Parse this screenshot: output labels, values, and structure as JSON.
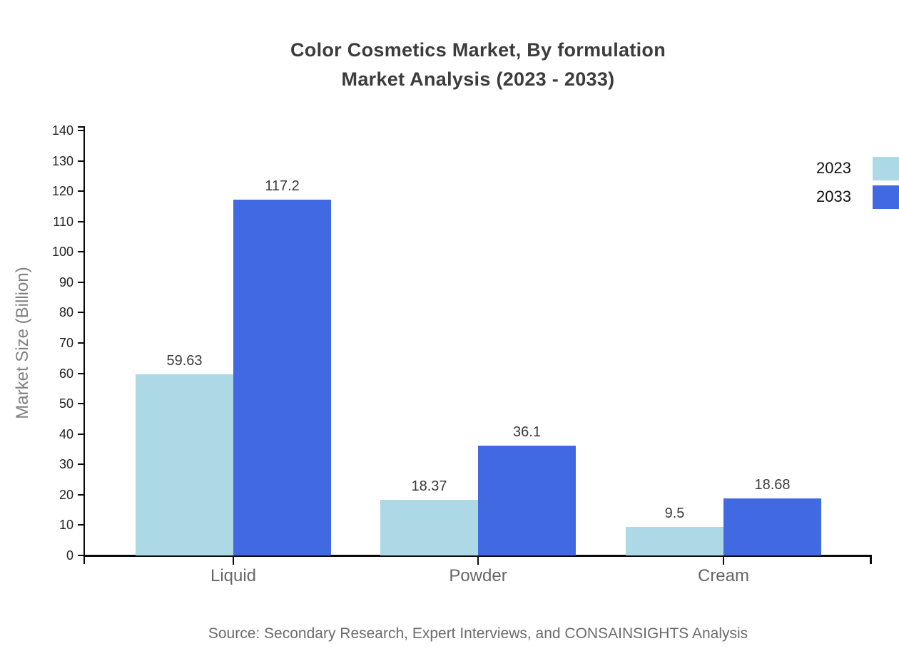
{
  "title_line1": "Color Cosmetics Market, By formulation",
  "title_line2": "Market Analysis (2023 - 2033)",
  "source_note": "Source: Secondary Research, Expert Interviews, and CONSAINSIGHTS Analysis",
  "colors": {
    "series_2023": "#ADD8E6",
    "series_2033": "#4169E1",
    "axis": "#0a0a0a",
    "title_text": "#3c3c3c",
    "category_text": "#666666",
    "ylabel_text": "#808080",
    "source_text": "#6b6b6b"
  },
  "chart_data": {
    "type": "bar",
    "title": "Color Cosmetics Market, By formulation Market Analysis (2023 - 2033)",
    "categories": [
      "Liquid",
      "Powder",
      "Cream"
    ],
    "series": [
      {
        "name": "2023",
        "color": "#ADD8E6",
        "values": [
          59.63,
          18.37,
          9.5
        ]
      },
      {
        "name": "2033",
        "color": "#4169E1",
        "values": [
          117.2,
          36.1,
          18.68
        ]
      }
    ],
    "xlabel": "",
    "ylabel": "Market Size (Billion)",
    "ylim": [
      0,
      140
    ],
    "yticks": [
      0,
      10,
      20,
      30,
      40,
      50,
      60,
      70,
      80,
      90,
      100,
      110,
      120,
      130,
      140
    ],
    "grid": false,
    "legend_position": "top-right",
    "value_labels_shown": true
  }
}
